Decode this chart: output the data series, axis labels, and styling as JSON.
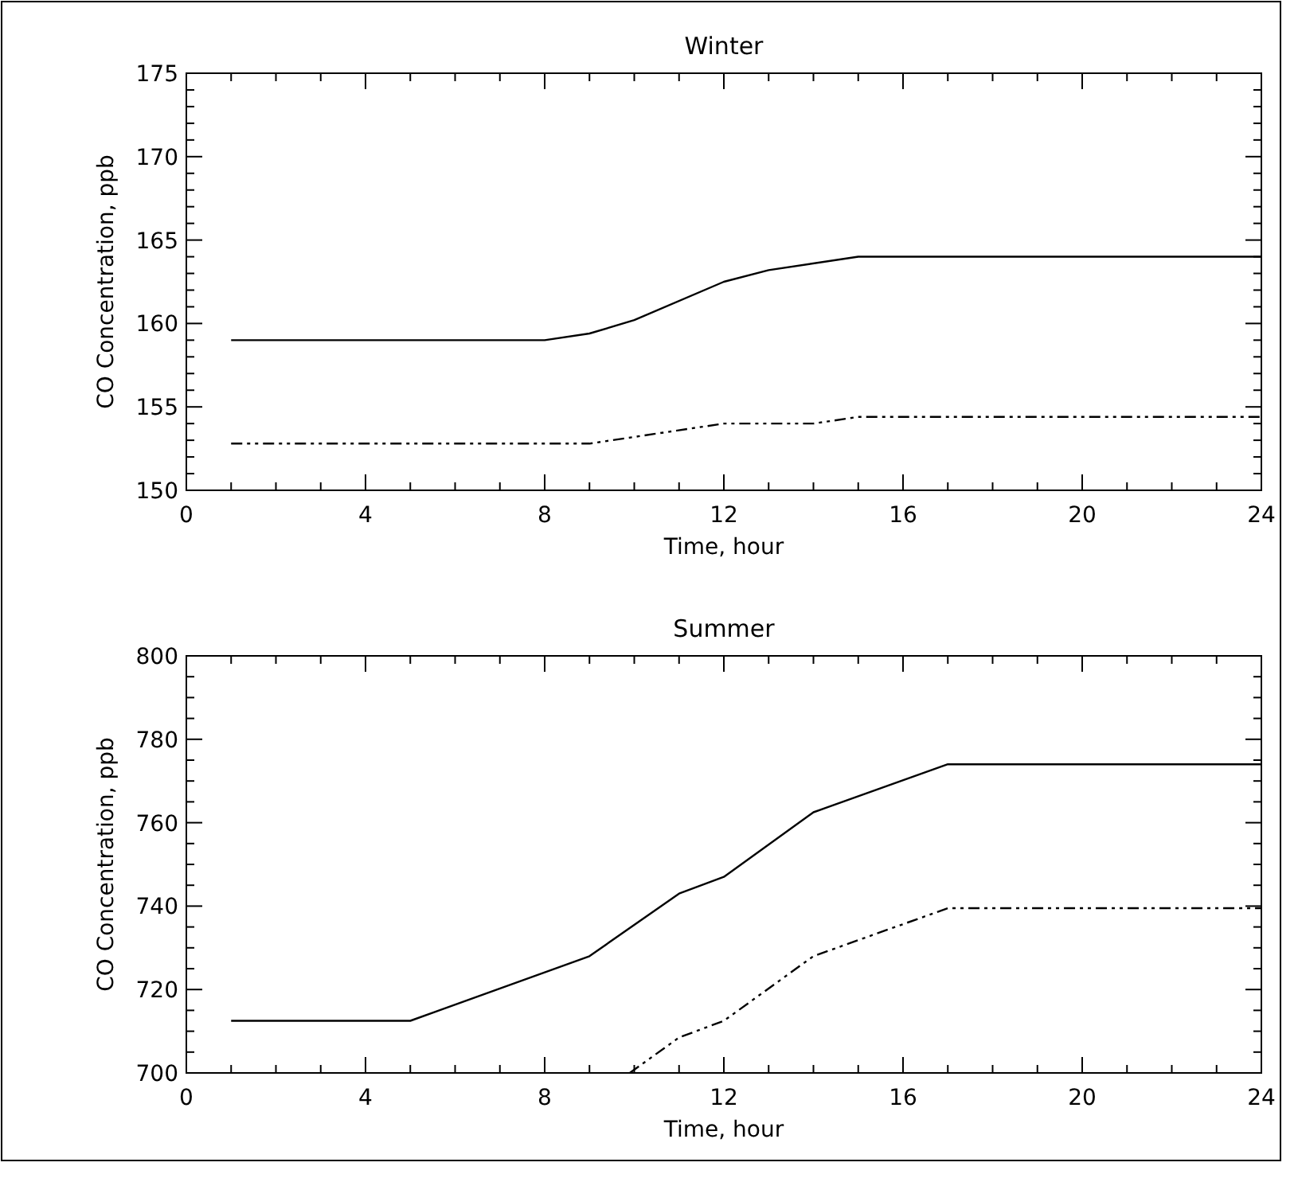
{
  "chart_data": [
    {
      "type": "line",
      "title": "Winter",
      "xlabel": "Time, hour",
      "ylabel": "CO Concentration, ppb",
      "xlim": [
        0,
        24
      ],
      "ylim": [
        150,
        175
      ],
      "xticks": [
        0,
        {
          "value": 1,
          "label": null
        },
        {
          "value": 2,
          "label": null
        },
        {
          "value": 3,
          "label": null
        },
        4,
        {
          "value": 5,
          "label": null
        },
        {
          "value": 6,
          "label": null
        },
        {
          "value": 7,
          "label": null
        },
        8,
        {
          "value": 9,
          "label": null
        },
        {
          "value": 10,
          "label": null
        },
        {
          "value": 11,
          "label": null
        },
        12,
        {
          "value": 13,
          "label": null
        },
        {
          "value": 14,
          "label": null
        },
        {
          "value": 15,
          "label": null
        },
        16,
        {
          "value": 17,
          "label": null
        },
        {
          "value": 18,
          "label": null
        },
        {
          "value": 19,
          "label": null
        },
        20,
        {
          "value": 21,
          "label": null
        },
        {
          "value": 22,
          "label": null
        },
        {
          "value": 23,
          "label": null
        },
        24
      ],
      "yticks": [
        150,
        {
          "value": 151,
          "label": null
        },
        {
          "value": 152,
          "label": null
        },
        {
          "value": 153,
          "label": null
        },
        {
          "value": 154,
          "label": null
        },
        155,
        {
          "value": 156,
          "label": null
        },
        {
          "value": 157,
          "label": null
        },
        {
          "value": 158,
          "label": null
        },
        {
          "value": 159,
          "label": null
        },
        160,
        {
          "value": 161,
          "label": null
        },
        {
          "value": 162,
          "label": null
        },
        {
          "value": 163,
          "label": null
        },
        {
          "value": 164,
          "label": null
        },
        165,
        {
          "value": 166,
          "label": null
        },
        {
          "value": 167,
          "label": null
        },
        {
          "value": 168,
          "label": null
        },
        {
          "value": 169,
          "label": null
        },
        170,
        {
          "value": 171,
          "label": null
        },
        {
          "value": 172,
          "label": null
        },
        {
          "value": 173,
          "label": null
        },
        {
          "value": 174,
          "label": null
        },
        175
      ],
      "series": [
        {
          "color": "#000000",
          "line_style": "solid",
          "x": [
            1,
            8,
            9,
            10,
            12,
            13,
            15,
            24
          ],
          "values": [
            159,
            159,
            159.4,
            160.2,
            162.5,
            163.2,
            164,
            164
          ]
        },
        {
          "color": "#000000",
          "line_style": "dashed",
          "x": [
            1,
            9,
            10,
            12,
            14,
            15,
            24
          ],
          "values": [
            152.8,
            152.8,
            153.2,
            154,
            154,
            154.4,
            154.4
          ]
        }
      ]
    },
    {
      "type": "line",
      "title": "Summer",
      "xlabel": "Time, hour",
      "ylabel": "CO Concentration, ppb",
      "xlim": [
        0,
        24
      ],
      "ylim": [
        700,
        800
      ],
      "xticks": [
        0,
        {
          "value": 1,
          "label": null
        },
        {
          "value": 2,
          "label": null
        },
        {
          "value": 3,
          "label": null
        },
        4,
        {
          "value": 5,
          "label": null
        },
        {
          "value": 6,
          "label": null
        },
        {
          "value": 7,
          "label": null
        },
        8,
        {
          "value": 9,
          "label": null
        },
        {
          "value": 10,
          "label": null
        },
        {
          "value": 11,
          "label": null
        },
        12,
        {
          "value": 13,
          "label": null
        },
        {
          "value": 14,
          "label": null
        },
        {
          "value": 15,
          "label": null
        },
        16,
        {
          "value": 17,
          "label": null
        },
        {
          "value": 18,
          "label": null
        },
        {
          "value": 19,
          "label": null
        },
        20,
        {
          "value": 21,
          "label": null
        },
        {
          "value": 22,
          "label": null
        },
        {
          "value": 23,
          "label": null
        },
        24
      ],
      "yticks": [
        700,
        {
          "value": 705,
          "label": null
        },
        {
          "value": 710,
          "label": null
        },
        {
          "value": 715,
          "label": null
        },
        720,
        {
          "value": 725,
          "label": null
        },
        {
          "value": 730,
          "label": null
        },
        {
          "value": 735,
          "label": null
        },
        740,
        {
          "value": 745,
          "label": null
        },
        {
          "value": 750,
          "label": null
        },
        {
          "value": 755,
          "label": null
        },
        760,
        {
          "value": 765,
          "label": null
        },
        {
          "value": 770,
          "label": null
        },
        {
          "value": 775,
          "label": null
        },
        780,
        {
          "value": 785,
          "label": null
        },
        {
          "value": 790,
          "label": null
        },
        {
          "value": 795,
          "label": null
        },
        800
      ],
      "series": [
        {
          "color": "#000000",
          "line_style": "solid",
          "x": [
            1,
            5,
            9,
            11,
            12,
            14,
            17,
            24
          ],
          "values": [
            712.5,
            712.5,
            728,
            743,
            747,
            762.5,
            774,
            774
          ]
        },
        {
          "color": "#000000",
          "line_style": "dashed",
          "x": [
            9.9,
            11,
            12,
            14,
            17,
            24
          ],
          "values": [
            700,
            708.5,
            712.5,
            728,
            739.5,
            739.5
          ]
        }
      ]
    }
  ]
}
